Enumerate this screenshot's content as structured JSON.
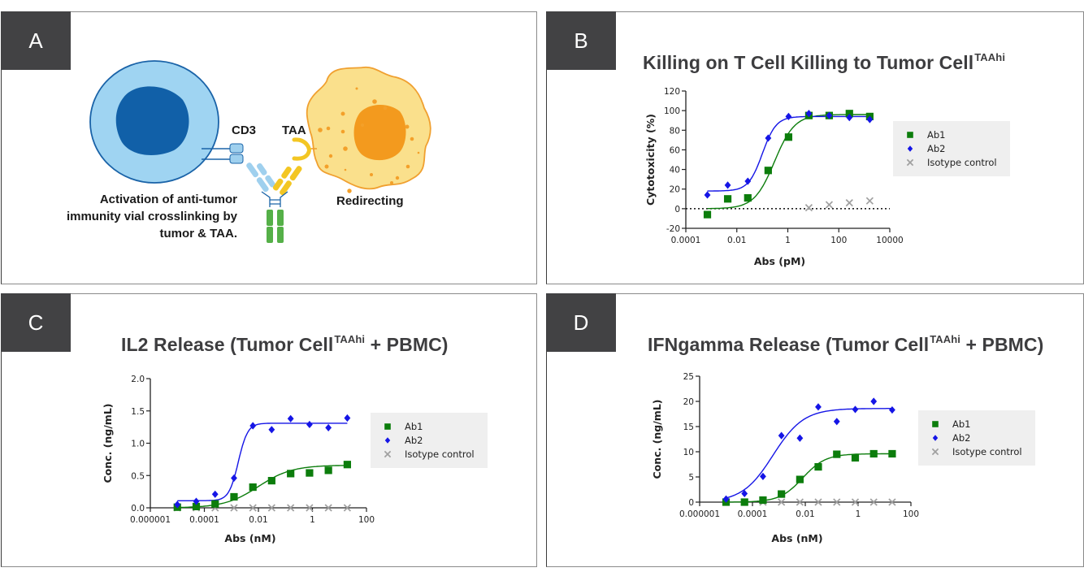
{
  "panels": {
    "a": {
      "label": "A",
      "cd3_label": "CD3",
      "taa_label": "TAA",
      "caption_lines": [
        "Activation of anti-tumor",
        "immunity vial crosslinking by",
        "tumor & TAA."
      ],
      "redirect_label": "Redirecting",
      "colors": {
        "t_cell": "#9fd4f2",
        "t_cell_border": "#1a63a8",
        "t_nucleus": "#1160a8",
        "tumor_cell": "#fae08c",
        "tumor_border": "#f0a030",
        "tumor_nucleus": "#f39a1e",
        "ab_left_arm": "#9fd0ee",
        "ab_right_arm": "#f3c623",
        "ab_fc": "#55b048"
      }
    },
    "b": {
      "label": "B"
    },
    "c": {
      "label": "C"
    },
    "d": {
      "label": "D"
    }
  },
  "legend": {
    "items": [
      {
        "name": "Ab1",
        "marker": "square",
        "color": "#0c7d0c"
      },
      {
        "name": "Ab2",
        "marker": "diamond",
        "color": "#1515e6"
      },
      {
        "name": "Isotype control",
        "marker": "x",
        "color": "#a0a0a0"
      }
    ]
  },
  "chart_data": [
    {
      "id": "b",
      "type": "scatter",
      "title": "Killing on T Cell Killing to Tumor Cell",
      "title_superscript": "TAAhi",
      "title_suffix": "",
      "xlabel": "Abs (pM)",
      "ylabel": "Cytotoxicity (%)",
      "xscale": "log",
      "xlim": [
        0.0001,
        10000
      ],
      "ylim": [
        -20,
        120
      ],
      "xticks": [
        0.0001,
        0.01,
        1,
        100,
        10000
      ],
      "xtick_labels": [
        "0.0001",
        "0.01",
        "1",
        "100",
        "10000"
      ],
      "yticks": [
        -20,
        0,
        20,
        40,
        60,
        80,
        100,
        120
      ],
      "ytick_labels": [
        "-20",
        "0",
        "20",
        "40",
        "60",
        "80",
        "100",
        "120"
      ],
      "zero_line": "dotted",
      "legend_position": "right",
      "series": [
        {
          "name": "Ab1",
          "x": [
            0.0007,
            0.0044,
            0.027,
            0.17,
            1.07,
            6.7,
            42,
            260,
            1640
          ],
          "y": [
            -6,
            10,
            11,
            39,
            73,
            95,
            95,
            97,
            94
          ],
          "fit": {
            "bottom": 0,
            "top": 96,
            "ec50": 0.3,
            "hill": 1.1
          }
        },
        {
          "name": "Ab2",
          "x": [
            0.0007,
            0.0044,
            0.027,
            0.17,
            1.07,
            6.7,
            42,
            260,
            1640
          ],
          "y": [
            14,
            24,
            28,
            72,
            94,
            97,
            95,
            93,
            91
          ],
          "fit": {
            "bottom": 18,
            "top": 94,
            "ec50": 0.1,
            "hill": 1.6
          }
        },
        {
          "name": "Isotype control",
          "x": [
            6.7,
            42,
            260,
            1640
          ],
          "y": [
            1,
            4,
            6,
            8
          ]
        }
      ]
    },
    {
      "id": "c",
      "type": "scatter",
      "title": "IL2 Release (Tumor Cell",
      "title_superscript": "TAAhi",
      "title_suffix": " + PBMC)",
      "xlabel": "Abs (nM)",
      "ylabel": "Conc. (ng/mL)",
      "xscale": "log",
      "xlim": [
        1e-06,
        100
      ],
      "ylim": [
        0,
        2.0
      ],
      "xticks": [
        1e-06,
        0.0001,
        0.01,
        1,
        100
      ],
      "xtick_labels": [
        "0.000001",
        "0.0001",
        "0.01",
        "1",
        "100"
      ],
      "yticks": [
        0,
        0.5,
        1.0,
        1.5,
        2.0
      ],
      "ytick_labels": [
        "0.0",
        "0.5",
        "1.0",
        "1.5",
        "2.0"
      ],
      "legend_position": "right",
      "series": [
        {
          "name": "Ab1",
          "x": [
            1e-05,
            5e-05,
            0.00025,
            0.00125,
            0.00625,
            0.031,
            0.156,
            0.78,
            3.9,
            19.5
          ],
          "y": [
            0.01,
            0.02,
            0.06,
            0.17,
            0.32,
            0.42,
            0.53,
            0.54,
            0.58,
            0.67
          ],
          "fit": {
            "bottom": 0,
            "top": 0.66,
            "ec50": 0.01,
            "hill": 0.7
          }
        },
        {
          "name": "Ab2",
          "x": [
            1e-05,
            5e-05,
            0.00025,
            0.00125,
            0.00625,
            0.031,
            0.156,
            0.78,
            3.9,
            19.5
          ],
          "y": [
            0.05,
            0.1,
            0.21,
            0.46,
            1.27,
            1.21,
            1.38,
            1.29,
            1.24,
            1.39
          ],
          "fit": {
            "bottom": 0.11,
            "top": 1.31,
            "ec50": 0.0018,
            "hill": 2.5
          }
        },
        {
          "name": "Isotype control",
          "x": [
            1e-05,
            5e-05,
            0.00025,
            0.00125,
            0.00625,
            0.031,
            0.156,
            0.78,
            3.9,
            19.5
          ],
          "y": [
            0,
            0,
            0,
            0,
            0,
            0,
            0,
            0,
            0,
            0
          ]
        }
      ]
    },
    {
      "id": "d",
      "type": "scatter",
      "title": "IFNgamma Release (Tumor Cell",
      "title_superscript": "TAAhi",
      "title_suffix": " + PBMC)",
      "xlabel": "Abs (nM)",
      "ylabel": "Conc. (ng/mL)",
      "xscale": "log",
      "xlim": [
        1e-06,
        100
      ],
      "ylim": [
        0,
        25
      ],
      "xticks": [
        1e-06,
        0.0001,
        0.01,
        1,
        100
      ],
      "xtick_labels": [
        "0.000001",
        "0.0001",
        "0.01",
        "1",
        "100"
      ],
      "yticks": [
        0,
        5,
        10,
        15,
        20,
        25
      ],
      "ytick_labels": [
        "0",
        "5",
        "10",
        "15",
        "20",
        "25"
      ],
      "legend_position": "right",
      "series": [
        {
          "name": "Ab1",
          "x": [
            1e-05,
            5e-05,
            0.00025,
            0.00125,
            0.00625,
            0.031,
            0.156,
            0.78,
            3.9,
            19.5
          ],
          "y": [
            0,
            0,
            0.4,
            1.6,
            4.5,
            7.0,
            9.5,
            8.8,
            9.6,
            9.6
          ],
          "fit": {
            "bottom": 0,
            "top": 9.6,
            "ec50": 0.008,
            "hill": 1.0
          }
        },
        {
          "name": "Ab2",
          "x": [
            1e-05,
            5e-05,
            0.00025,
            0.00125,
            0.00625,
            0.031,
            0.156,
            0.78,
            3.9,
            19.5
          ],
          "y": [
            0.6,
            1.7,
            5.1,
            13.2,
            12.7,
            18.9,
            16.0,
            18.4,
            20.0,
            18.3
          ],
          "fit": {
            "bottom": 0,
            "top": 18.6,
            "ec50": 0.0006,
            "hill": 0.75
          }
        },
        {
          "name": "Isotype control",
          "x": [
            1e-05,
            5e-05,
            0.00025,
            0.00125,
            0.00625,
            0.031,
            0.156,
            0.78,
            3.9,
            19.5
          ],
          "y": [
            0,
            0,
            0,
            0,
            0,
            0,
            0,
            0,
            0,
            0
          ]
        }
      ]
    }
  ]
}
